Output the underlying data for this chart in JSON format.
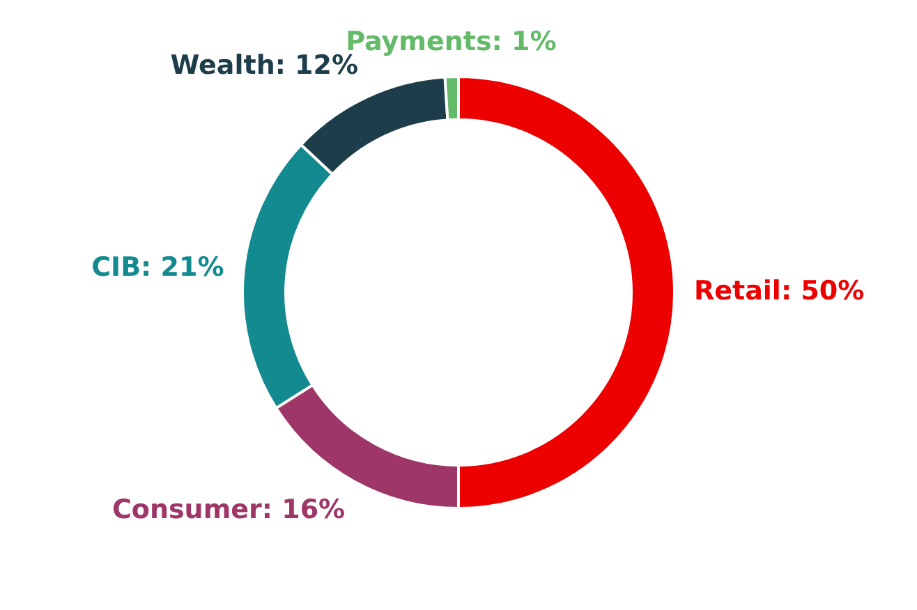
{
  "chart_data": {
    "type": "donut",
    "categories": [
      "Retail",
      "Consumer",
      "CIB",
      "Wealth",
      "Payments"
    ],
    "values": [
      50,
      16,
      21,
      12,
      1
    ],
    "colors": [
      "#ec0000",
      "#9e3667",
      "#138a8f",
      "#1e3d4b",
      "#63ba68"
    ],
    "value_labels": [
      "50%",
      "16%",
      "21%",
      "12%",
      "1%"
    ],
    "legend": false
  }
}
